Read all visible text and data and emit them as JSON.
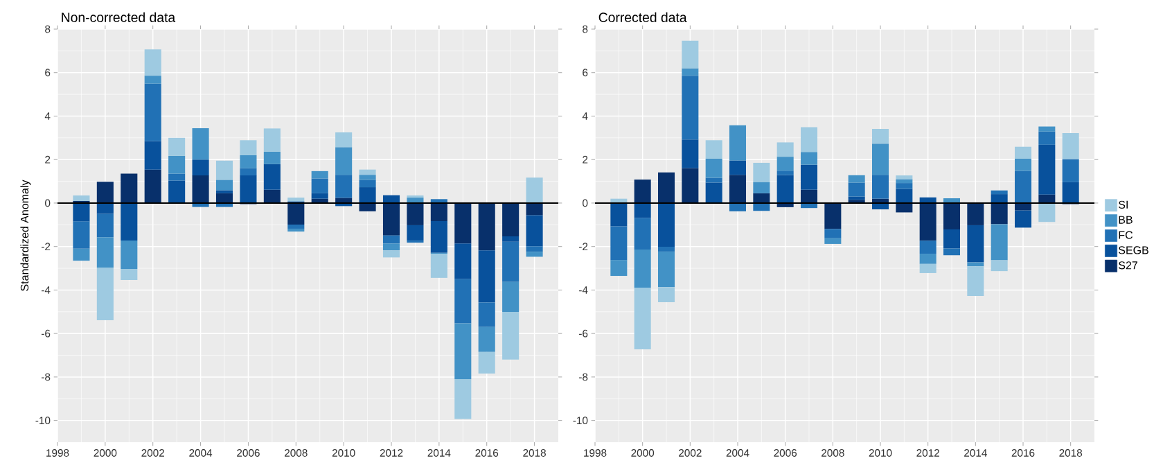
{
  "chart_data": [
    {
      "type": "bar",
      "title": "Non-corrected data",
      "ylabel": "Standardized Anomaly",
      "stacked": true,
      "grid": true,
      "x": [
        1999,
        2000,
        2001,
        2002,
        2003,
        2004,
        2005,
        2006,
        2007,
        2008,
        2009,
        2010,
        2011,
        2012,
        2013,
        2014,
        2015,
        2016,
        2017,
        2018
      ],
      "series": [
        {
          "color": "#08306b",
          "values": [
            0.1,
            0.98,
            1.35,
            1.54,
            0,
            1.27,
            0.45,
            -0.05,
            0.61,
            -0.99,
            0.2,
            0.24,
            -0.38,
            -1.49,
            -1.02,
            -0.83,
            -1.86,
            -2.18,
            -1.53,
            -0.56
          ]
        },
        {
          "color": "#08519c",
          "values": [
            -0.85,
            -0.5,
            -1.72,
            1.31,
            1.03,
            0.73,
            0.14,
            1.27,
            1.18,
            0.08,
            0.25,
            -0.14,
            0.73,
            0.36,
            -0.7,
            -1.46,
            -1.64,
            -2.39,
            -0.25,
            -1.43
          ]
        },
        {
          "color": "#2171b5",
          "values": [
            -1.25,
            -1.07,
            0,
            2.64,
            0.32,
            -0.18,
            -0.18,
            0.33,
            0,
            -0.19,
            0.68,
            1.06,
            0.34,
            -0.37,
            -0.1,
            0.18,
            -2.03,
            -1.13,
            -1.85,
            -0.25
          ]
        },
        {
          "color": "#4292c6",
          "values": [
            -0.55,
            -1.4,
            -1.31,
            0.37,
            0.82,
            1.44,
            0.48,
            0.6,
            0.57,
            -0.13,
            0.34,
            1.27,
            0.23,
            -0.32,
            0.25,
            -0.05,
            -2.57,
            -1.15,
            -1.38,
            -0.23
          ]
        },
        {
          "color": "#9ecae1",
          "values": [
            0.25,
            -2.42,
            -0.51,
            1.21,
            0.83,
            0,
            0.88,
            0.69,
            1.07,
            0.17,
            0,
            0.68,
            0.24,
            -0.32,
            0.1,
            -1.1,
            -1.83,
            -0.99,
            -2.19,
            1.17
          ]
        }
      ],
      "xlim": [
        1998,
        2019
      ],
      "ylim": [
        -11,
        8
      ],
      "xticks": [
        1998,
        2000,
        2002,
        2004,
        2006,
        2008,
        2010,
        2012,
        2014,
        2016,
        2018
      ],
      "yticks": [
        -10,
        -8,
        -6,
        -4,
        -2,
        0,
        2,
        4,
        6,
        8
      ],
      "ref_lines": [
        {
          "axis": "y",
          "value": 0,
          "color": "#000000"
        }
      ]
    },
    {
      "type": "bar",
      "title": "Corrected data",
      "stacked": true,
      "grid": true,
      "legend": "right",
      "x": [
        1999,
        2000,
        2001,
        2002,
        2003,
        2004,
        2005,
        2006,
        2007,
        2008,
        2009,
        2010,
        2011,
        2012,
        2013,
        2014,
        2015,
        2016,
        2017,
        2018
      ],
      "series": [
        {
          "name": "S27",
          "color": "#08306b",
          "values": [
            0,
            1.08,
            1.41,
            1.61,
            0,
            1.3,
            0.45,
            -0.19,
            0.61,
            -1.19,
            0.15,
            0.2,
            -0.43,
            -1.73,
            -1.21,
            -1.02,
            -0.97,
            -0.34,
            0.39,
            -0.05
          ]
        },
        {
          "name": "SEGB",
          "color": "#08519c",
          "values": [
            -1.07,
            -0.69,
            -2.01,
            1.31,
            0.94,
            0.66,
            0,
            1.29,
            1.15,
            0,
            0.15,
            -0.29,
            0.65,
            0.26,
            -0.88,
            -1.71,
            0.41,
            -0.79,
            2.29,
            0.96
          ]
        },
        {
          "name": "FC",
          "color": "#2171b5",
          "values": [
            -1.55,
            -1.45,
            -0.22,
            2.94,
            0.22,
            -0.38,
            -0.36,
            0.2,
            -0.23,
            -0.43,
            0.64,
            1.1,
            0.27,
            -0.6,
            -0.31,
            0,
            0.17,
            1.48,
            0.61,
            1.06
          ]
        },
        {
          "name": "BB",
          "color": "#4292c6",
          "values": [
            -0.73,
            -1.75,
            -1.64,
            0.34,
            0.88,
            1.62,
            0.52,
            0.64,
            0.59,
            -0.26,
            0.34,
            1.43,
            0.18,
            -0.47,
            0.22,
            -0.18,
            -1.66,
            0.56,
            0.23,
            0
          ]
        },
        {
          "name": "SI",
          "color": "#9ecae1",
          "values": [
            0.2,
            -2.84,
            -0.69,
            1.27,
            0.85,
            0,
            0.88,
            0.66,
            1.14,
            null,
            0,
            0.68,
            0.17,
            -0.42,
            0,
            -1.36,
            -0.5,
            0.55,
            -0.87,
            1.2
          ]
        }
      ],
      "xlim": [
        1998,
        2019
      ],
      "ylim": [
        -11,
        8
      ],
      "xticks": [
        1998,
        2000,
        2002,
        2004,
        2006,
        2008,
        2010,
        2012,
        2014,
        2016,
        2018
      ],
      "yticks": [
        -10,
        -8,
        -6,
        -4,
        -2,
        0,
        2,
        4,
        6,
        8
      ],
      "ref_lines": [
        {
          "axis": "y",
          "value": 0,
          "color": "#000000"
        }
      ]
    }
  ]
}
